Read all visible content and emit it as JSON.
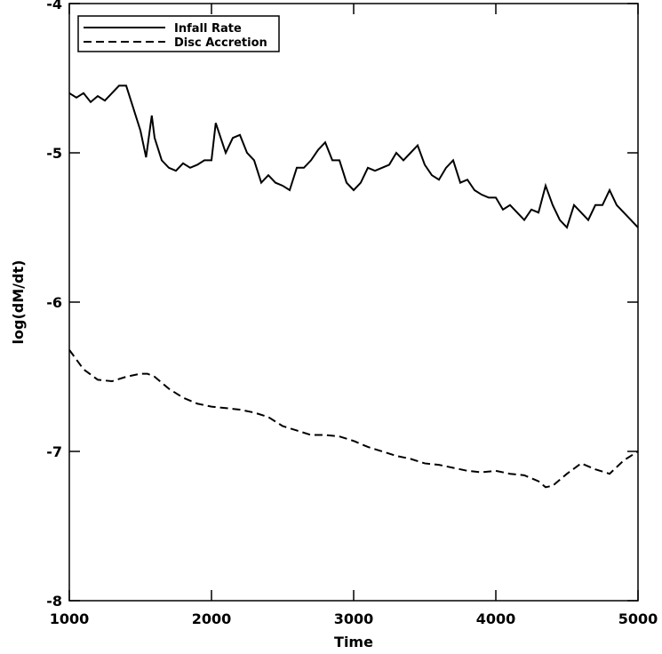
{
  "chart_data": {
    "type": "line",
    "x_label": "Time",
    "y_label": "log(dM/dt)",
    "xlim": [
      1000,
      5000
    ],
    "xticks": [
      1000,
      2000,
      3000,
      4000,
      5000
    ],
    "ylim": [
      -8,
      -4
    ],
    "yticks": [
      -8,
      -7,
      -6,
      -5,
      -4
    ],
    "legend": "upper left",
    "series": [
      {
        "name": "Infall Rate",
        "color": "#000000",
        "dash": "solid",
        "x": [
          1000,
          1050,
          1100,
          1150,
          1200,
          1250,
          1300,
          1350,
          1400,
          1450,
          1500,
          1540,
          1580,
          1600,
          1650,
          1700,
          1750,
          1800,
          1850,
          1900,
          1950,
          2000,
          2030,
          2100,
          2150,
          2200,
          2250,
          2300,
          2350,
          2400,
          2450,
          2500,
          2550,
          2600,
          2650,
          2700,
          2750,
          2800,
          2850,
          2900,
          2950,
          3000,
          3050,
          3100,
          3150,
          3200,
          3250,
          3300,
          3350,
          3400,
          3450,
          3500,
          3550,
          3600,
          3650,
          3700,
          3750,
          3800,
          3850,
          3900,
          3950,
          4000,
          4050,
          4100,
          4150,
          4200,
          4250,
          4300,
          4350,
          4400,
          4450,
          4500,
          4550,
          4600,
          4650,
          4700,
          4750,
          4800,
          4850,
          4900,
          4950,
          5000
        ],
        "values": [
          -4.6,
          -4.63,
          -4.6,
          -4.66,
          -4.62,
          -4.65,
          -4.6,
          -4.55,
          -4.55,
          -4.7,
          -4.85,
          -5.03,
          -4.75,
          -4.9,
          -5.05,
          -5.1,
          -5.12,
          -5.07,
          -5.1,
          -5.08,
          -5.05,
          -5.05,
          -4.8,
          -5.0,
          -4.9,
          -4.88,
          -5.0,
          -5.05,
          -5.2,
          -5.15,
          -5.2,
          -5.22,
          -5.25,
          -5.1,
          -5.1,
          -5.05,
          -4.98,
          -4.93,
          -5.05,
          -5.05,
          -5.2,
          -5.25,
          -5.2,
          -5.1,
          -5.12,
          -5.1,
          -5.08,
          -5.0,
          -5.05,
          -5.0,
          -4.95,
          -5.08,
          -5.15,
          -5.18,
          -5.1,
          -5.05,
          -5.2,
          -5.18,
          -5.25,
          -5.28,
          -5.3,
          -5.3,
          -5.38,
          -5.35,
          -5.4,
          -5.45,
          -5.38,
          -5.4,
          -5.22,
          -5.35,
          -5.45,
          -5.5,
          -5.35,
          -5.4,
          -5.45,
          -5.35,
          -5.35,
          -5.25,
          -5.35,
          -5.4,
          -5.45,
          -5.5
        ]
      },
      {
        "name": "Disc Accretion",
        "color": "#000000",
        "dash": "dashed",
        "x": [
          1000,
          1100,
          1200,
          1300,
          1400,
          1500,
          1550,
          1600,
          1700,
          1800,
          1900,
          2000,
          2100,
          2200,
          2300,
          2400,
          2500,
          2600,
          2700,
          2800,
          2900,
          3000,
          3100,
          3200,
          3300,
          3400,
          3500,
          3600,
          3700,
          3800,
          3900,
          4000,
          4100,
          4200,
          4300,
          4350,
          4400,
          4500,
          4600,
          4700,
          4800,
          4900,
          5000
        ],
        "values": [
          -6.32,
          -6.45,
          -6.52,
          -6.53,
          -6.5,
          -6.48,
          -6.48,
          -6.5,
          -6.58,
          -6.64,
          -6.68,
          -6.7,
          -6.71,
          -6.72,
          -6.74,
          -6.77,
          -6.83,
          -6.86,
          -6.89,
          -6.89,
          -6.9,
          -6.93,
          -6.97,
          -7.0,
          -7.03,
          -7.05,
          -7.08,
          -7.09,
          -7.11,
          -7.13,
          -7.14,
          -7.13,
          -7.15,
          -7.16,
          -7.2,
          -7.24,
          -7.23,
          -7.15,
          -7.08,
          -7.12,
          -7.15,
          -7.06,
          -7.0
        ]
      }
    ]
  }
}
